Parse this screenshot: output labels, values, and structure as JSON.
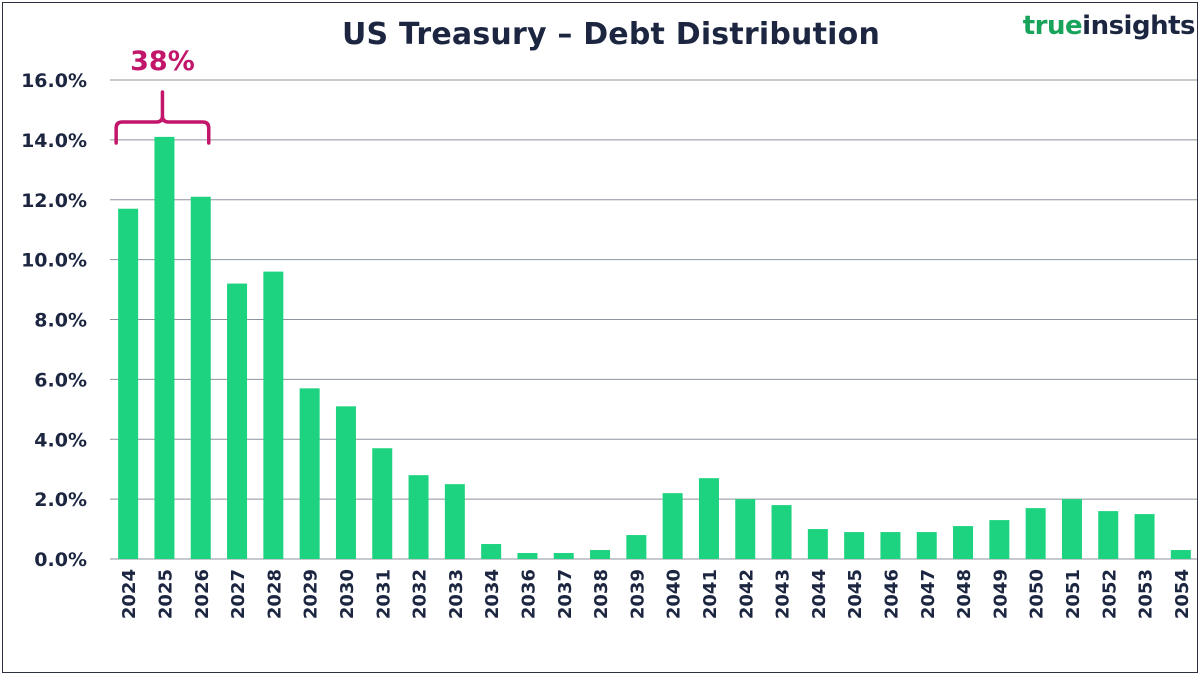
{
  "header": {
    "title": "US Treasury – Debt Distribution",
    "brand_word1": "true",
    "brand_word2": "insights"
  },
  "colors": {
    "bar": "#1ed37f",
    "text": "#1c2640",
    "grid": "#8d949e",
    "annotation": "#c2166b",
    "brand_green": "#18a35b"
  },
  "chart_data": {
    "type": "bar",
    "title": "US Treasury – Debt Distribution",
    "xlabel": "",
    "ylabel": "",
    "ylim": [
      0,
      16
    ],
    "yticks": [
      "0.0%",
      "2.0%",
      "4.0%",
      "6.0%",
      "8.0%",
      "10.0%",
      "12.0%",
      "14.0%",
      "16.0%"
    ],
    "ytick_values": [
      0,
      2,
      4,
      6,
      8,
      10,
      12,
      14,
      16
    ],
    "grid": true,
    "categories": [
      "2024",
      "2025",
      "2026",
      "2027",
      "2028",
      "2029",
      "2030",
      "2031",
      "2032",
      "2033",
      "2034",
      "2036",
      "2037",
      "2038",
      "2039",
      "2040",
      "2041",
      "2042",
      "2043",
      "2044",
      "2045",
      "2046",
      "2047",
      "2048",
      "2049",
      "2050",
      "2051",
      "2052",
      "2053",
      "2054"
    ],
    "values": [
      11.7,
      14.1,
      12.1,
      9.2,
      9.6,
      5.7,
      5.1,
      3.7,
      2.8,
      2.5,
      0.5,
      0.2,
      0.2,
      0.3,
      0.8,
      2.2,
      2.7,
      2.0,
      1.8,
      1.0,
      0.9,
      0.9,
      0.9,
      1.1,
      1.3,
      1.7,
      2.0,
      1.6,
      1.5,
      0.3
    ],
    "annotation": {
      "text": "38%",
      "spans_categories": [
        "2024",
        "2026"
      ]
    }
  }
}
